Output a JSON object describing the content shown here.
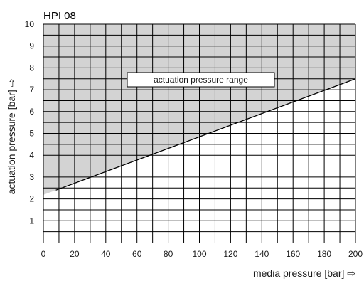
{
  "chart_data": {
    "type": "area",
    "title": "HPI 08",
    "xlabel": "media pressure [bar] ⇨",
    "ylabel": "actuation pressure [bar] ⇨",
    "xlim": [
      0,
      200
    ],
    "ylim": [
      0,
      10
    ],
    "grid": true,
    "x_ticks": [
      "0",
      "20",
      "40",
      "60",
      "80",
      "100",
      "120",
      "140",
      "160",
      "180",
      "200"
    ],
    "y_ticks": [
      "1",
      "2",
      "3",
      "4",
      "5",
      "6",
      "7",
      "8",
      "9",
      "10"
    ],
    "series": [
      {
        "x": [
          8,
          200
        ],
        "y": [
          2.4,
          7.5
        ]
      }
    ],
    "annotation": "actuation pressure range",
    "fill_color": "#d3d3d3",
    "line_color": "#000000"
  }
}
